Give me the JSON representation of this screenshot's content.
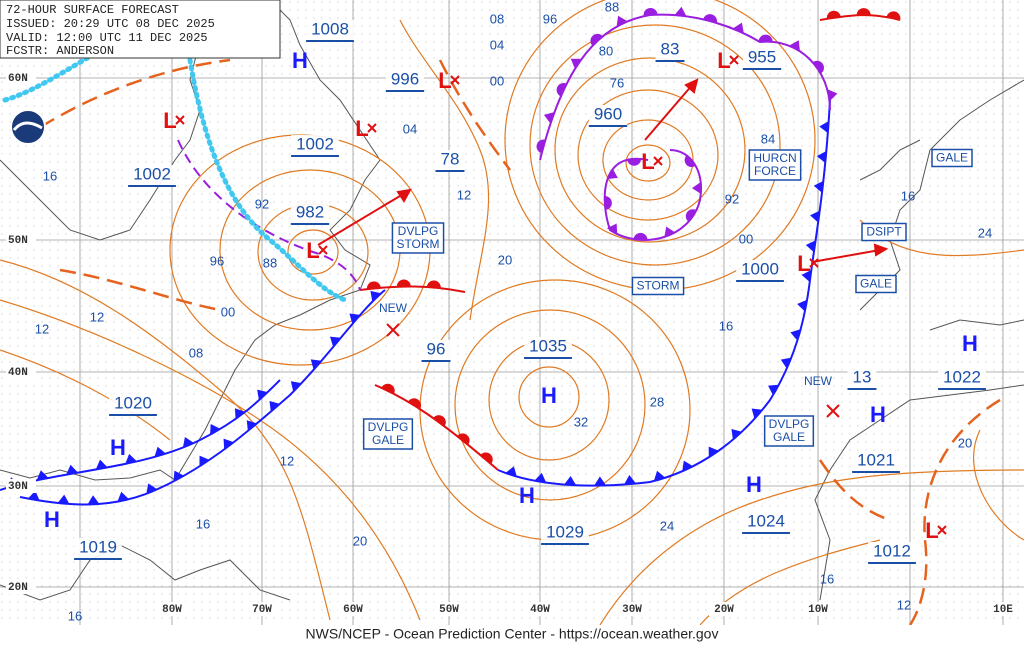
{
  "header": {
    "title": "72-HOUR SURFACE FORECAST",
    "issued": "ISSUED: 20:29 UTC 08 DEC 2025",
    "valid": "VALID:  12:00 UTC 11 DEC 2025",
    "forecaster": "FCSTR:  ANDERSON"
  },
  "latitude_labels": [
    "60N",
    "50N",
    "40N",
    "30N",
    "20N"
  ],
  "longitude_labels": [
    "80W",
    "70W",
    "60W",
    "50W",
    "40W",
    "30W",
    "20W",
    "10W",
    "10E"
  ],
  "pressure_values": [
    "1008",
    "996",
    "1002",
    "1002",
    "982",
    "78",
    "960",
    "83",
    "955",
    "1000",
    "1035",
    "96",
    "1020",
    "1019",
    "1029",
    "1024",
    "13",
    "1022",
    "1021",
    "1012"
  ],
  "isobar_labels": [
    "08",
    "04",
    "00",
    "96",
    "88",
    "80",
    "76",
    "84",
    "92",
    "00",
    "12",
    "04",
    "92",
    "96",
    "88",
    "00",
    "08",
    "12",
    "12",
    "16",
    "20",
    "16",
    "28",
    "32",
    "12",
    "16",
    "20",
    "24",
    "16",
    "12",
    "20",
    "16",
    "24",
    "16"
  ],
  "area_labels": [
    [
      "DVLPG",
      "STORM"
    ],
    [
      "HURCN",
      "FORCE"
    ],
    [
      "STORM"
    ],
    [
      "GALE"
    ],
    [
      "DSIPT"
    ],
    [
      "GALE"
    ],
    [
      "DVLPG",
      "GALE"
    ],
    [
      "DVLPG",
      "GALE"
    ]
  ],
  "new_labels": [
    "NEW",
    "NEW"
  ],
  "centers": [
    "H",
    "H",
    "H",
    "H",
    "H",
    "H",
    "H",
    "H",
    "L",
    "L",
    "L",
    "L",
    "L",
    "L",
    "L",
    "L"
  ],
  "footer": "NWS/NCEP - Ocean Prediction Center - https://ocean.weather.gov"
}
